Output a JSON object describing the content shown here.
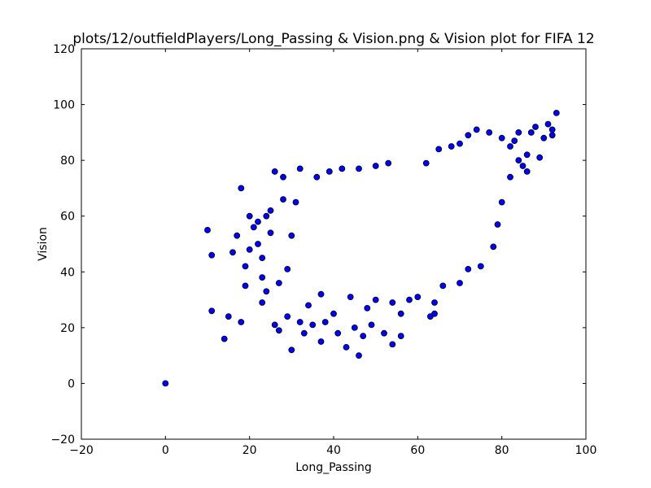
{
  "chart_data": {
    "type": "scatter",
    "title": "plots/12/outfieldPlayers/Long_Passing & Vision.png & Vision plot for FIFA 12",
    "xlabel": "Long_Passing",
    "ylabel": "Vision",
    "xlim": [
      -20,
      100
    ],
    "ylim": [
      -20,
      120
    ],
    "xticks": [
      "−20",
      "0",
      "20",
      "40",
      "60",
      "80",
      "100"
    ],
    "yticks": [
      "−20",
      "0",
      "20",
      "40",
      "60",
      "80",
      "100",
      "120"
    ],
    "grid": false,
    "legend": "none",
    "marker_color": "#0000ff",
    "marker_edge": "#000000",
    "series": [
      {
        "points": [
          [
            0,
            0
          ],
          [
            10,
            55
          ],
          [
            11,
            46
          ],
          [
            11,
            26
          ],
          [
            14,
            16
          ],
          [
            15,
            24
          ],
          [
            16,
            47
          ],
          [
            17,
            53
          ],
          [
            18,
            22
          ],
          [
            18,
            70
          ],
          [
            19,
            35
          ],
          [
            19,
            42
          ],
          [
            20,
            60
          ],
          [
            20,
            48
          ],
          [
            21,
            56
          ],
          [
            22,
            58
          ],
          [
            22,
            50
          ],
          [
            23,
            45
          ],
          [
            23,
            38
          ],
          [
            23,
            29
          ],
          [
            24,
            33
          ],
          [
            24,
            60
          ],
          [
            25,
            54
          ],
          [
            25,
            62
          ],
          [
            26,
            76
          ],
          [
            26,
            21
          ],
          [
            27,
            36
          ],
          [
            27,
            19
          ],
          [
            28,
            74
          ],
          [
            28,
            66
          ],
          [
            29,
            41
          ],
          [
            29,
            24
          ],
          [
            30,
            12
          ],
          [
            30,
            53
          ],
          [
            31,
            65
          ],
          [
            32,
            22
          ],
          [
            32,
            77
          ],
          [
            33,
            18
          ],
          [
            34,
            28
          ],
          [
            35,
            21
          ],
          [
            36,
            74
          ],
          [
            37,
            15
          ],
          [
            37,
            32
          ],
          [
            38,
            22
          ],
          [
            39,
            76
          ],
          [
            40,
            25
          ],
          [
            41,
            18
          ],
          [
            42,
            77
          ],
          [
            43,
            13
          ],
          [
            44,
            31
          ],
          [
            45,
            20
          ],
          [
            46,
            10
          ],
          [
            46,
            77
          ],
          [
            47,
            17
          ],
          [
            48,
            27
          ],
          [
            49,
            21
          ],
          [
            50,
            78
          ],
          [
            50,
            30
          ],
          [
            52,
            18
          ],
          [
            53,
            79
          ],
          [
            54,
            14
          ],
          [
            54,
            29
          ],
          [
            56,
            17
          ],
          [
            56,
            25
          ],
          [
            58,
            30
          ],
          [
            60,
            31
          ],
          [
            62,
            79
          ],
          [
            63,
            24
          ],
          [
            64,
            25
          ],
          [
            64,
            29
          ],
          [
            65,
            84
          ],
          [
            66,
            35
          ],
          [
            68,
            85
          ],
          [
            70,
            36
          ],
          [
            70,
            86
          ],
          [
            72,
            41
          ],
          [
            72,
            89
          ],
          [
            74,
            91
          ],
          [
            75,
            42
          ],
          [
            77,
            90
          ],
          [
            78,
            49
          ],
          [
            79,
            57
          ],
          [
            80,
            88
          ],
          [
            82,
            85
          ],
          [
            83,
            87
          ],
          [
            84,
            90
          ],
          [
            85,
            78
          ],
          [
            86,
            82
          ],
          [
            87,
            90
          ],
          [
            88,
            92
          ],
          [
            89,
            81
          ],
          [
            90,
            88
          ],
          [
            91,
            93
          ],
          [
            92,
            91
          ],
          [
            93,
            97
          ],
          [
            92,
            89
          ],
          [
            86,
            76
          ],
          [
            84,
            80
          ],
          [
            82,
            74
          ],
          [
            80,
            65
          ]
        ]
      }
    ]
  }
}
